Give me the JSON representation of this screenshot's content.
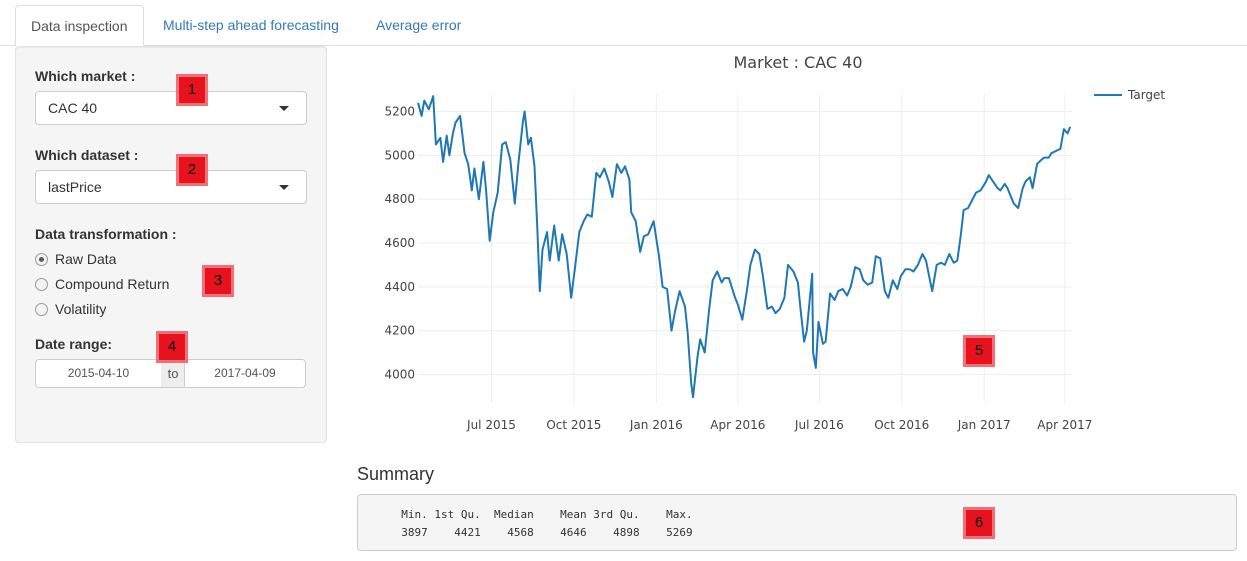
{
  "tabs": [
    {
      "label": "Data inspection",
      "active": true
    },
    {
      "label": "Multi-step ahead forecasting",
      "active": false
    },
    {
      "label": "Average error",
      "active": false
    }
  ],
  "sidebar": {
    "market_label": "Which market :",
    "market_value": "CAC 40",
    "dataset_label": "Which dataset :",
    "dataset_value": "lastPrice",
    "transformation_label": "Data transformation :",
    "transformation_options": [
      {
        "label": "Raw Data",
        "selected": true
      },
      {
        "label": "Compound Return",
        "selected": false
      },
      {
        "label": "Volatility",
        "selected": false
      }
    ],
    "date_range_label": "Date range:",
    "date_start": "2015-04-10",
    "date_separator": "to",
    "date_end": "2017-04-09"
  },
  "markers": [
    "1",
    "2",
    "3",
    "4",
    "5",
    "6"
  ],
  "summary": {
    "title": "Summary",
    "output": "  Min. 1st Qu.  Median    Mean 3rd Qu.    Max.\n  3897    4421    4568    4646    4898    5269"
  },
  "colors": {
    "accent": "#337ab7",
    "series": "#1f77b4",
    "marker": "#e8121f"
  },
  "chart_data": {
    "type": "line",
    "title": "Market : CAC 40",
    "xlabel": "",
    "ylabel": "",
    "x_ticks": [
      "Jul 2015",
      "Oct 2015",
      "Jan 2016",
      "Apr 2016",
      "Jul 2016",
      "Oct 2016",
      "Jan 2017",
      "Apr 2017"
    ],
    "y_ticks": [
      4000,
      4200,
      4400,
      4600,
      4800,
      5000,
      5200
    ],
    "xlim": [
      "2015-04-10",
      "2017-04-09"
    ],
    "ylim": [
      3870,
      5280
    ],
    "grid": true,
    "legend_position": "top-right",
    "series": [
      {
        "name": "Target",
        "color": "#1f77b4",
        "points": [
          [
            "2015-04-10",
            5240
          ],
          [
            "2015-04-14",
            5180
          ],
          [
            "2015-04-17",
            5250
          ],
          [
            "2015-04-22",
            5210
          ],
          [
            "2015-04-27",
            5270
          ],
          [
            "2015-04-30",
            5050
          ],
          [
            "2015-05-05",
            5080
          ],
          [
            "2015-05-08",
            4970
          ],
          [
            "2015-05-12",
            5090
          ],
          [
            "2015-05-15",
            5000
          ],
          [
            "2015-05-19",
            5100
          ],
          [
            "2015-05-22",
            5150
          ],
          [
            "2015-05-27",
            5180
          ],
          [
            "2015-06-01",
            5010
          ],
          [
            "2015-06-05",
            4960
          ],
          [
            "2015-06-09",
            4840
          ],
          [
            "2015-06-12",
            4940
          ],
          [
            "2015-06-17",
            4800
          ],
          [
            "2015-06-22",
            4970
          ],
          [
            "2015-06-25",
            4840
          ],
          [
            "2015-06-29",
            4610
          ],
          [
            "2015-07-03",
            4740
          ],
          [
            "2015-07-08",
            4830
          ],
          [
            "2015-07-13",
            5050
          ],
          [
            "2015-07-17",
            5060
          ],
          [
            "2015-07-22",
            4980
          ],
          [
            "2015-07-27",
            4780
          ],
          [
            "2015-07-31",
            4960
          ],
          [
            "2015-08-05",
            5150
          ],
          [
            "2015-08-07",
            5200
          ],
          [
            "2015-08-11",
            5050
          ],
          [
            "2015-08-14",
            5080
          ],
          [
            "2015-08-18",
            4950
          ],
          [
            "2015-08-21",
            4680
          ],
          [
            "2015-08-24",
            4380
          ],
          [
            "2015-08-27",
            4570
          ],
          [
            "2015-09-01",
            4650
          ],
          [
            "2015-09-04",
            4520
          ],
          [
            "2015-09-09",
            4680
          ],
          [
            "2015-09-14",
            4520
          ],
          [
            "2015-09-18",
            4640
          ],
          [
            "2015-09-23",
            4550
          ],
          [
            "2015-09-28",
            4350
          ],
          [
            "2015-10-02",
            4480
          ],
          [
            "2015-10-07",
            4650
          ],
          [
            "2015-10-12",
            4700
          ],
          [
            "2015-10-16",
            4730
          ],
          [
            "2015-10-21",
            4720
          ],
          [
            "2015-10-26",
            4920
          ],
          [
            "2015-10-30",
            4900
          ],
          [
            "2015-11-04",
            4940
          ],
          [
            "2015-11-09",
            4880
          ],
          [
            "2015-11-13",
            4810
          ],
          [
            "2015-11-18",
            4960
          ],
          [
            "2015-11-23",
            4920
          ],
          [
            "2015-11-27",
            4950
          ],
          [
            "2015-12-02",
            4890
          ],
          [
            "2015-12-04",
            4740
          ],
          [
            "2015-12-09",
            4700
          ],
          [
            "2015-12-14",
            4560
          ],
          [
            "2015-12-18",
            4630
          ],
          [
            "2015-12-23",
            4640
          ],
          [
            "2015-12-29",
            4700
          ],
          [
            "2016-01-04",
            4540
          ],
          [
            "2016-01-08",
            4400
          ],
          [
            "2016-01-13",
            4390
          ],
          [
            "2016-01-18",
            4200
          ],
          [
            "2016-01-22",
            4290
          ],
          [
            "2016-01-27",
            4380
          ],
          [
            "2016-02-02",
            4310
          ],
          [
            "2016-02-05",
            4190
          ],
          [
            "2016-02-09",
            3960
          ],
          [
            "2016-02-11",
            3897
          ],
          [
            "2016-02-16",
            4080
          ],
          [
            "2016-02-19",
            4160
          ],
          [
            "2016-02-24",
            4100
          ],
          [
            "2016-02-29",
            4300
          ],
          [
            "2016-03-04",
            4430
          ],
          [
            "2016-03-09",
            4470
          ],
          [
            "2016-03-14",
            4420
          ],
          [
            "2016-03-17",
            4440
          ],
          [
            "2016-03-22",
            4440
          ],
          [
            "2016-03-29",
            4350
          ],
          [
            "2016-04-01",
            4320
          ],
          [
            "2016-04-06",
            4250
          ],
          [
            "2016-04-11",
            4380
          ],
          [
            "2016-04-15",
            4500
          ],
          [
            "2016-04-20",
            4570
          ],
          [
            "2016-04-25",
            4550
          ],
          [
            "2016-04-29",
            4450
          ],
          [
            "2016-05-04",
            4300
          ],
          [
            "2016-05-09",
            4310
          ],
          [
            "2016-05-13",
            4280
          ],
          [
            "2016-05-18",
            4300
          ],
          [
            "2016-05-23",
            4350
          ],
          [
            "2016-05-27",
            4500
          ],
          [
            "2016-06-02",
            4470
          ],
          [
            "2016-06-07",
            4420
          ],
          [
            "2016-06-10",
            4300
          ],
          [
            "2016-06-14",
            4150
          ],
          [
            "2016-06-17",
            4200
          ],
          [
            "2016-06-23",
            4460
          ],
          [
            "2016-06-24",
            4100
          ],
          [
            "2016-06-27",
            4030
          ],
          [
            "2016-06-30",
            4240
          ],
          [
            "2016-07-05",
            4140
          ],
          [
            "2016-07-08",
            4150
          ],
          [
            "2016-07-13",
            4370
          ],
          [
            "2016-07-18",
            4340
          ],
          [
            "2016-07-22",
            4380
          ],
          [
            "2016-07-27",
            4390
          ],
          [
            "2016-08-01",
            4360
          ],
          [
            "2016-08-05",
            4400
          ],
          [
            "2016-08-10",
            4490
          ],
          [
            "2016-08-15",
            4480
          ],
          [
            "2016-08-19",
            4430
          ],
          [
            "2016-08-24",
            4410
          ],
          [
            "2016-08-29",
            4420
          ],
          [
            "2016-09-02",
            4540
          ],
          [
            "2016-09-07",
            4530
          ],
          [
            "2016-09-12",
            4380
          ],
          [
            "2016-09-16",
            4350
          ],
          [
            "2016-09-21",
            4430
          ],
          [
            "2016-09-26",
            4390
          ],
          [
            "2016-09-30",
            4450
          ],
          [
            "2016-10-05",
            4480
          ],
          [
            "2016-10-10",
            4480
          ],
          [
            "2016-10-14",
            4470
          ],
          [
            "2016-10-19",
            4500
          ],
          [
            "2016-10-24",
            4550
          ],
          [
            "2016-10-28",
            4520
          ],
          [
            "2016-11-02",
            4420
          ],
          [
            "2016-11-04",
            4380
          ],
          [
            "2016-11-09",
            4500
          ],
          [
            "2016-11-14",
            4510
          ],
          [
            "2016-11-18",
            4500
          ],
          [
            "2016-11-23",
            4550
          ],
          [
            "2016-11-28",
            4510
          ],
          [
            "2016-12-02",
            4520
          ],
          [
            "2016-12-06",
            4640
          ],
          [
            "2016-12-09",
            4750
          ],
          [
            "2016-12-14",
            4760
          ],
          [
            "2016-12-19",
            4800
          ],
          [
            "2016-12-23",
            4830
          ],
          [
            "2016-12-28",
            4840
          ],
          [
            "2017-01-03",
            4880
          ],
          [
            "2017-01-06",
            4910
          ],
          [
            "2017-01-11",
            4880
          ],
          [
            "2017-01-16",
            4850
          ],
          [
            "2017-01-19",
            4840
          ],
          [
            "2017-01-24",
            4870
          ],
          [
            "2017-01-27",
            4850
          ],
          [
            "2017-02-01",
            4800
          ],
          [
            "2017-02-03",
            4780
          ],
          [
            "2017-02-08",
            4760
          ],
          [
            "2017-02-13",
            4850
          ],
          [
            "2017-02-16",
            4880
          ],
          [
            "2017-02-21",
            4900
          ],
          [
            "2017-02-24",
            4850
          ],
          [
            "2017-03-01",
            4960
          ],
          [
            "2017-03-06",
            4980
          ],
          [
            "2017-03-09",
            4990
          ],
          [
            "2017-03-14",
            4990
          ],
          [
            "2017-03-17",
            5010
          ],
          [
            "2017-03-22",
            5020
          ],
          [
            "2017-03-27",
            5030
          ],
          [
            "2017-03-31",
            5120
          ],
          [
            "2017-04-04",
            5100
          ],
          [
            "2017-04-07",
            5130
          ]
        ]
      }
    ]
  }
}
